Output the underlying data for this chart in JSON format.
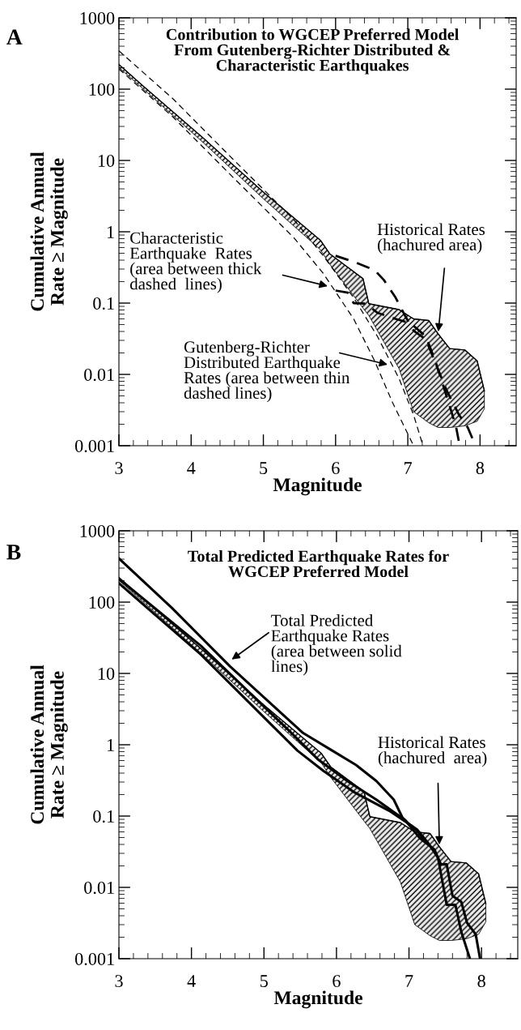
{
  "chart_data": [
    {
      "type": "line",
      "title": "Contribution to WGCEP Preferred Model\nFrom Gutenberg-Richter Distributed &\nCharacteristic Earthquakes",
      "xlabel": "Magnitude",
      "ylabel": "Cumulative Annual\nRate ≥ Magnitude",
      "log": "y",
      "xlim": [
        3,
        8.5
      ],
      "ylim": [
        0.001,
        1000
      ],
      "xticks": [
        3,
        4,
        5,
        6,
        7,
        8
      ],
      "yticks": [
        0.001,
        0.01,
        0.1,
        1,
        10,
        100,
        1000
      ],
      "series": [
        {
          "color": "#000000",
          "x": [
            3.0,
            3.33,
            4.17,
            5.0,
            5.79,
            5.92,
            6.38,
            6.46,
            6.88,
            7.08,
            7.29,
            7.42,
            7.58,
            7.79,
            7.96,
            8.06
          ],
          "values": [
            222,
            112,
            20.5,
            3.6,
            0.76,
            0.49,
            0.22,
            0.098,
            0.081,
            0.06,
            0.057,
            0.037,
            0.023,
            0.022,
            0.0155,
            0.0059
          ],
          "lower": [
            201,
            102,
            17.7,
            2.9,
            0.56,
            0.35,
            0.085,
            0.067,
            0.012,
            0.003,
            0.0021,
            0.0018,
            0.0018,
            0.0019,
            0.0022,
            0.0033
          ],
          "upper": [
            222,
            112,
            20.5,
            3.6,
            0.76,
            0.49,
            0.22,
            0.098,
            0.081,
            0.06,
            0.057,
            0.037,
            0.023,
            0.022,
            0.0155,
            0.0059
          ]
        },
        {
          "color": "#000000",
          "line_style": "dashed",
          "x": [
            3.0,
            3.75,
            4.58,
            5.42,
            5.83,
            6.25,
            6.58,
            6.88,
            7.08,
            7.21
          ],
          "values": [
            344,
            73,
            10.4,
            1.49,
            0.46,
            0.119,
            0.034,
            0.0087,
            0.0027,
            0.001
          ]
        },
        {
          "color": "#000000",
          "line_style": "dashed",
          "x": [
            3.0,
            3.75,
            4.58,
            5.42,
            5.83,
            6.25,
            6.54,
            6.79,
            7.08
          ],
          "values": [
            192,
            40.5,
            5.8,
            0.83,
            0.26,
            0.06,
            0.0155,
            0.004,
            0.001
          ]
        },
        {
          "color": "#000000",
          "line_style": "dashed",
          "x": [
            6.0,
            6.25,
            6.54,
            6.67,
            6.83,
            6.96,
            7.08,
            7.25,
            7.42,
            7.54,
            7.71,
            7.83,
            7.92
          ],
          "values": [
            0.46,
            0.38,
            0.29,
            0.21,
            0.12,
            0.067,
            0.041,
            0.031,
            0.0116,
            0.0059,
            0.0027,
            0.0018,
            0.0011
          ]
        },
        {
          "color": "#000000",
          "line_style": "dashed",
          "x": [
            6.0,
            6.17,
            6.25,
            6.42,
            6.58,
            6.83,
            7.04,
            7.25,
            7.38,
            7.5,
            7.58,
            7.67,
            7.71
          ],
          "values": [
            0.15,
            0.14,
            0.1,
            0.098,
            0.073,
            0.06,
            0.052,
            0.034,
            0.0155,
            0.0065,
            0.0036,
            0.0018,
            0.0011
          ]
        }
      ],
      "annotations": [
        "A",
        {
          "text": "Characteristic\nEarthquake  Rates\n(area between thick\ndashed  lines)",
          "x": 5.92,
          "y": 0.17
        },
        {
          "text": "Gutenberg-Richter\nDistributed Earthquake\nRates (area between thin\ndashed lines)",
          "x": 6.75,
          "y": 0.0135
        },
        {
          "text": "Historical Rates\n(hachured area)",
          "x": 7.42,
          "y": 0.037
        }
      ]
    },
    {
      "type": "line",
      "title": "Total Predicted Earthquake Rates for\nWGCEP Preferred Model",
      "xlabel": "Magnitude",
      "ylabel": "Cumulative Annual\nRate ≥ Magnitude",
      "log": "y",
      "xlim": [
        3,
        8.5
      ],
      "ylim": [
        0.001,
        1000
      ],
      "xticks": [
        3,
        4,
        5,
        6,
        7,
        8
      ],
      "yticks": [
        0.001,
        0.01,
        0.1,
        1,
        10,
        100,
        1000
      ],
      "series": [
        {
          "color": "#000000",
          "x": [
            3.0,
            3.33,
            4.17,
            5.0,
            5.79,
            5.92,
            6.38,
            6.46,
            6.88,
            7.08,
            7.29,
            7.42,
            7.58,
            7.79,
            7.96,
            8.06
          ],
          "values": [
            222,
            112,
            20.5,
            3.6,
            0.76,
            0.49,
            0.22,
            0.098,
            0.081,
            0.06,
            0.057,
            0.037,
            0.023,
            0.022,
            0.0155,
            0.0059
          ],
          "lower": [
            201,
            102,
            17.7,
            2.9,
            0.56,
            0.35,
            0.085,
            0.067,
            0.012,
            0.003,
            0.0021,
            0.0018,
            0.0018,
            0.0019,
            0.0022,
            0.0033
          ],
          "upper": [
            222,
            112,
            20.5,
            3.6,
            0.76,
            0.49,
            0.22,
            0.098,
            0.081,
            0.06,
            0.057,
            0.037,
            0.023,
            0.022,
            0.0155,
            0.0059
          ]
        },
        {
          "color": "#000000",
          "line_style": "solid",
          "x": [
            3.0,
            3.73,
            4.53,
            5.54,
            5.94,
            6.27,
            6.55,
            6.79,
            6.91,
            6.99,
            7.11,
            7.19
          ],
          "values": [
            410,
            83,
            12.6,
            1.46,
            0.83,
            0.52,
            0.31,
            0.17,
            0.095,
            0.079,
            0.063,
            0.049
          ]
        },
        {
          "color": "#000000",
          "line_style": "solid",
          "x": [
            3.0,
            4.13,
            5.34,
            5.74,
            6.15,
            6.55,
            6.95,
            7.15,
            7.35,
            7.44,
            7.52,
            7.6,
            7.72,
            7.8,
            7.92,
            7.98
          ],
          "values": [
            212,
            24.4,
            1.6,
            0.63,
            0.31,
            0.17,
            0.087,
            0.049,
            0.034,
            0.021,
            0.021,
            0.0076,
            0.0063,
            0.0032,
            0.0022,
            0.001
          ]
        },
        {
          "color": "#000000",
          "line_style": "solid",
          "x": [
            3.0,
            4.13,
            5.46,
            5.82,
            6.23,
            6.75,
            7.11,
            7.27,
            7.4,
            7.52,
            7.64,
            7.72,
            7.84
          ],
          "values": [
            184,
            18.4,
            0.83,
            0.43,
            0.22,
            0.115,
            0.065,
            0.041,
            0.026,
            0.0057,
            0.0057,
            0.0024,
            0.001
          ]
        }
      ],
      "annotations": [
        "B",
        {
          "text": "Total Predicted\nEarthquake Rates\n(area between solid\nlines)",
          "x": 4.53,
          "y": 15
        },
        {
          "text": "Historical Rates\n(hachured  area)",
          "x": 7.42,
          "y": 0.037
        }
      ]
    }
  ]
}
